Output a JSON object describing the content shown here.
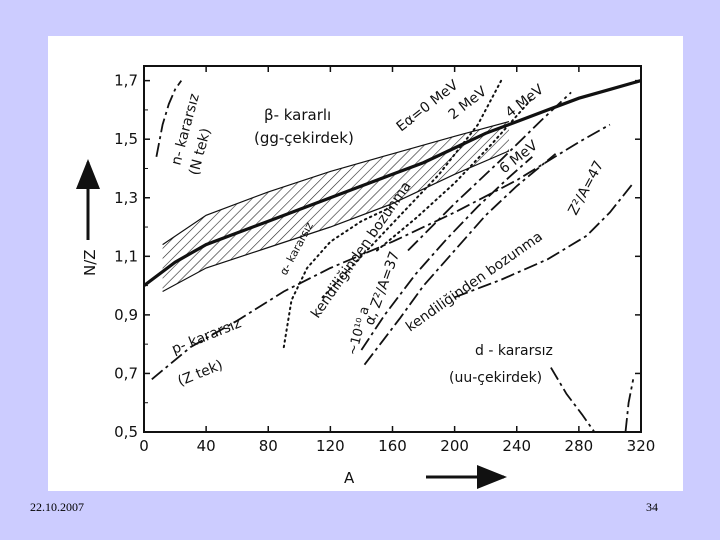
{
  "footer": {
    "date": "22.10.2007",
    "page": "34"
  },
  "chart_data": {
    "type": "line",
    "xlabel": "A",
    "ylabel": "N/Z",
    "xlim": [
      0,
      320
    ],
    "ylim": [
      0.5,
      1.75
    ],
    "x_ticks": [
      "0",
      "40",
      "80",
      "120",
      "160",
      "200",
      "240",
      "280",
      "320"
    ],
    "y_ticks": [
      "0,5",
      "0,7",
      "0,9",
      "1,1",
      "1,3",
      "1,5",
      "1,7"
    ],
    "x_tick_values": [
      0,
      40,
      80,
      120,
      160,
      200,
      240,
      280,
      320
    ],
    "y_tick_values": [
      0.5,
      0.7,
      0.9,
      1.1,
      1.3,
      1.5,
      1.7
    ],
    "series": [
      {
        "key": "stability",
        "style": "thick",
        "points": [
          [
            0,
            1.0
          ],
          [
            20,
            1.08
          ],
          [
            40,
            1.14
          ],
          [
            60,
            1.18
          ],
          [
            80,
            1.22
          ],
          [
            100,
            1.26
          ],
          [
            120,
            1.3
          ],
          [
            140,
            1.34
          ],
          [
            160,
            1.38
          ],
          [
            180,
            1.42
          ],
          [
            200,
            1.47
          ],
          [
            220,
            1.52
          ],
          [
            240,
            1.56
          ],
          [
            260,
            1.6
          ],
          [
            280,
            1.64
          ],
          [
            300,
            1.67
          ],
          [
            320,
            1.7
          ]
        ]
      },
      {
        "key": "band-upper",
        "style": "thin",
        "points": [
          [
            12,
            1.14
          ],
          [
            40,
            1.24
          ],
          [
            80,
            1.32
          ],
          [
            120,
            1.39
          ],
          [
            160,
            1.45
          ],
          [
            200,
            1.51
          ],
          [
            235,
            1.56
          ]
        ]
      },
      {
        "key": "band-lower",
        "style": "thin",
        "points": [
          [
            12,
            0.98
          ],
          [
            40,
            1.06
          ],
          [
            80,
            1.13
          ],
          [
            120,
            1.2
          ],
          [
            160,
            1.28
          ],
          [
            200,
            1.38
          ],
          [
            235,
            1.46
          ]
        ]
      },
      {
        "key": "n-unstable",
        "style": "dashdot",
        "points": [
          [
            8,
            1.44
          ],
          [
            12,
            1.55
          ],
          [
            16,
            1.62
          ],
          [
            20,
            1.67
          ],
          [
            24,
            1.7
          ]
        ]
      },
      {
        "key": "p-unstable",
        "style": "dashdot",
        "points": [
          [
            5,
            0.68
          ],
          [
            30,
            0.79
          ],
          [
            60,
            0.88
          ],
          [
            90,
            0.98
          ],
          [
            120,
            1.06
          ],
          [
            160,
            1.15
          ],
          [
            200,
            1.25
          ],
          [
            240,
            1.36
          ],
          [
            280,
            1.49
          ],
          [
            300,
            1.55
          ]
        ]
      },
      {
        "key": "alpha-unstable",
        "style": "dotted",
        "points": [
          [
            90,
            0.79
          ],
          [
            95,
            0.95
          ],
          [
            105,
            1.06
          ],
          [
            120,
            1.15
          ],
          [
            140,
            1.22
          ],
          [
            160,
            1.27
          ]
        ]
      },
      {
        "key": "Ea0",
        "style": "dotted",
        "points": [
          [
            115,
            0.96
          ],
          [
            140,
            1.1
          ],
          [
            165,
            1.24
          ],
          [
            190,
            1.38
          ],
          [
            215,
            1.55
          ],
          [
            230,
            1.7
          ]
        ]
      },
      {
        "key": "2MeV",
        "style": "dotted",
        "points": [
          [
            150,
            1.12
          ],
          [
            175,
            1.23
          ],
          [
            200,
            1.35
          ],
          [
            225,
            1.49
          ],
          [
            250,
            1.64
          ]
        ]
      },
      {
        "key": "4MeV",
        "style": "dashdot",
        "points": [
          [
            170,
            1.12
          ],
          [
            200,
            1.28
          ],
          [
            230,
            1.43
          ],
          [
            255,
            1.56
          ],
          [
            275,
            1.66
          ]
        ]
      },
      {
        "key": "6MeV",
        "style": "dashdot",
        "points": [
          [
            142,
            0.73
          ],
          [
            165,
            0.89
          ],
          [
            180,
            1.0
          ],
          [
            200,
            1.12
          ],
          [
            220,
            1.24
          ],
          [
            240,
            1.34
          ],
          [
            265,
            1.45
          ]
        ]
      },
      {
        "key": "spontaneous-37",
        "style": "dashdot",
        "points": [
          [
            140,
            0.78
          ],
          [
            155,
            0.9
          ],
          [
            175,
            1.04
          ],
          [
            195,
            1.16
          ],
          [
            215,
            1.27
          ],
          [
            235,
            1.37
          ],
          [
            250,
            1.44
          ]
        ]
      },
      {
        "key": "spontaneous-47",
        "style": "dashdot",
        "points": [
          [
            200,
            0.96
          ],
          [
            230,
            1.02
          ],
          [
            260,
            1.09
          ],
          [
            285,
            1.17
          ],
          [
            300,
            1.25
          ],
          [
            315,
            1.35
          ]
        ]
      },
      {
        "key": "d-unstable",
        "style": "dashdot",
        "points": [
          [
            262,
            0.72
          ],
          [
            272,
            0.63
          ],
          [
            282,
            0.56
          ],
          [
            290,
            0.5
          ]
        ]
      },
      {
        "key": "d-unstable-2",
        "style": "dashdot",
        "points": [
          [
            310,
            0.5
          ],
          [
            312,
            0.6
          ],
          [
            315,
            0.68
          ]
        ]
      }
    ],
    "annotations": {
      "n_label": "n- kararsız",
      "n_sub": "(N tek)",
      "beta_label": "β- kararlı",
      "beta_sub": "(gg-çekirdek)",
      "alpha_label": "α- kararsız",
      "p_label": "p- kararsız",
      "p_sub": "(Z tek)",
      "spont1_label": "kendiliğinden bozunma",
      "spont1_cond": "α, Z²/A=37",
      "spont1_time": "~10¹⁰ a",
      "spont2_label": "kendiliğinden bozunma",
      "spont2_cond": "Z²/A=47",
      "e0_label": "Eα=0 MeV",
      "e2_label": "2 MeV",
      "e4_label": "4 MeV",
      "e6_label": "6 MeV",
      "d_label": "d - kararsız",
      "d_sub": "(uu-çekirdek)"
    }
  }
}
